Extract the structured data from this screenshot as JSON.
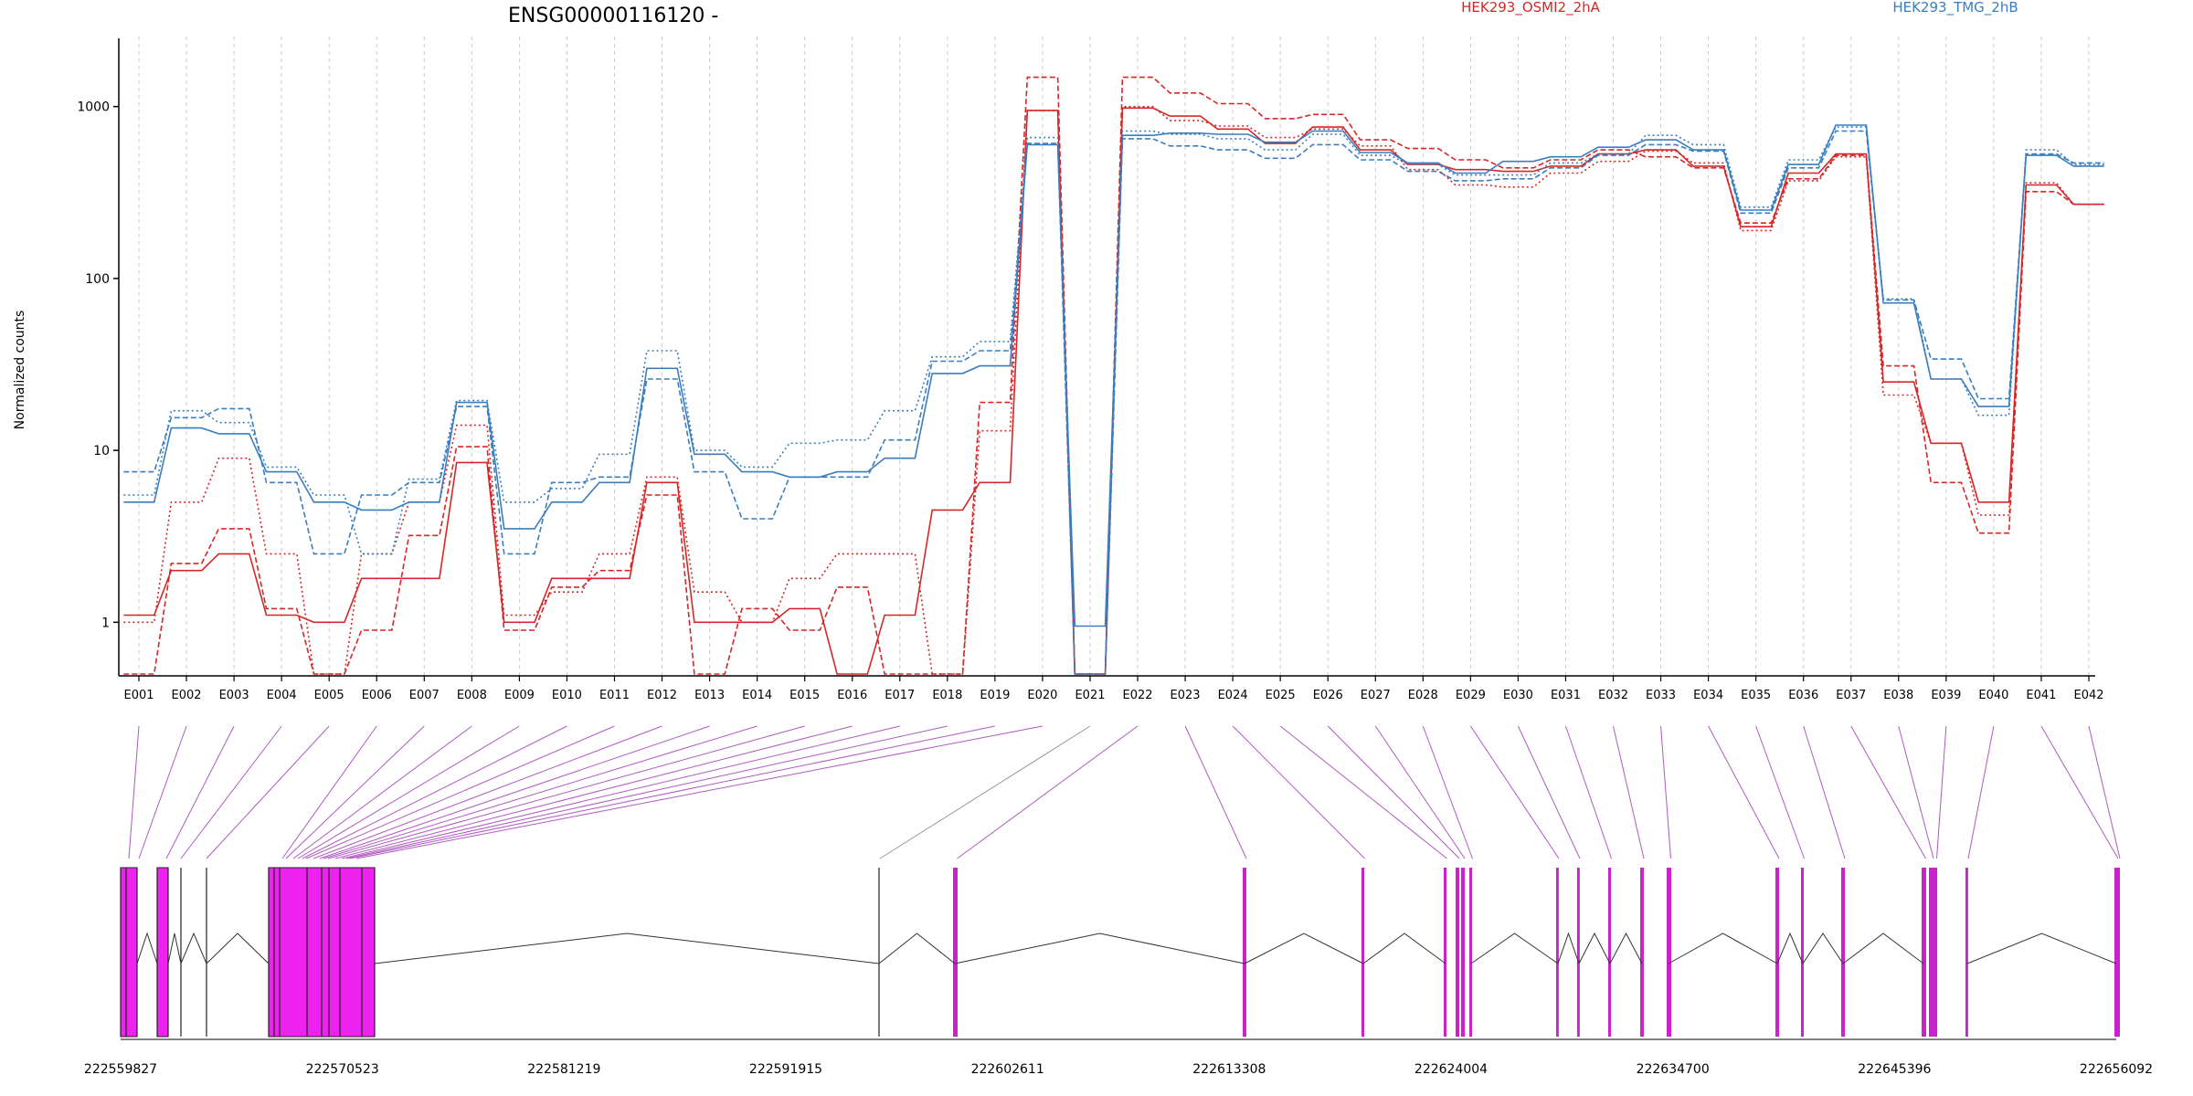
{
  "chart_data": {
    "type": "line",
    "title": "ENSG00000116120 -",
    "ylabel": "Normalized counts",
    "xlabel": "",
    "yscale": "log",
    "ylim": [
      0.5,
      2000
    ],
    "yticks": [
      1,
      10,
      100,
      1000
    ],
    "ytick_labels": [
      "1",
      "10",
      "100",
      "1000"
    ],
    "grid": "vertical dashed lines per exon",
    "legend_position": "top",
    "categories": [
      "E001",
      "E002",
      "E003",
      "E004",
      "E005",
      "E006",
      "E007",
      "E008",
      "E009",
      "E010",
      "E011",
      "E012",
      "E013",
      "E014",
      "E015",
      "E016",
      "E017",
      "E018",
      "E019",
      "E020",
      "E021",
      "E022",
      "E023",
      "E024",
      "E025",
      "E026",
      "E027",
      "E028",
      "E029",
      "E030",
      "E031",
      "E032",
      "E033",
      "E034",
      "E035",
      "E036",
      "E037",
      "E038",
      "E039",
      "E040",
      "E041",
      "E042"
    ],
    "groups": [
      {
        "name": "HEK293_OSMI2_2hA",
        "color": "#d62728"
      },
      {
        "name": "HEK293_TMG_2hB",
        "color": "#3a7ebf"
      }
    ],
    "series": [
      {
        "group": 0,
        "dash": "solid",
        "values": [
          1.1,
          2.0,
          2.5,
          1.1,
          1.0,
          1.8,
          1.8,
          8.5,
          1.0,
          1.8,
          1.8,
          6.5,
          1.0,
          1.0,
          1.2,
          0.5,
          1.1,
          4.5,
          6.5,
          950,
          0.5,
          980,
          880,
          740,
          610,
          760,
          560,
          460,
          430,
          420,
          450,
          530,
          560,
          450,
          200,
          410,
          530,
          25,
          11,
          5.0,
          350,
          270
        ]
      },
      {
        "group": 0,
        "dash": "dashed",
        "values": [
          0.5,
          2.2,
          3.5,
          1.2,
          0.5,
          0.9,
          3.2,
          10.5,
          0.9,
          1.6,
          2.0,
          5.5,
          0.5,
          1.2,
          0.9,
          1.6,
          0.5,
          0.5,
          19,
          1480,
          0.5,
          1480,
          1200,
          1040,
          850,
          900,
          640,
          570,
          490,
          440,
          490,
          560,
          510,
          440,
          210,
          380,
          520,
          31,
          6.5,
          3.3,
          320,
          270
        ]
      },
      {
        "group": 0,
        "dash": "dotted",
        "values": [
          1.0,
          5.0,
          9.0,
          2.5,
          0.5,
          2.5,
          5.0,
          14.0,
          1.1,
          1.5,
          2.5,
          7.0,
          1.5,
          1.0,
          1.8,
          2.5,
          2.5,
          0.5,
          13,
          950,
          0.5,
          1000,
          830,
          770,
          660,
          740,
          590,
          430,
          350,
          340,
          410,
          480,
          550,
          470,
          190,
          370,
          510,
          21,
          11,
          4.2,
          360,
          270
        ]
      },
      {
        "group": 1,
        "dash": "solid",
        "values": [
          5.0,
          13.5,
          12.5,
          7.5,
          5.0,
          4.5,
          5.0,
          19.0,
          3.5,
          5.0,
          6.5,
          30,
          9.5,
          7.5,
          7.0,
          7.5,
          9.0,
          28,
          31,
          600,
          0.95,
          680,
          700,
          690,
          620,
          720,
          540,
          470,
          410,
          480,
          510,
          580,
          640,
          560,
          250,
          460,
          780,
          72,
          26,
          18,
          520,
          450
        ]
      },
      {
        "group": 1,
        "dash": "dashed",
        "values": [
          7.5,
          15.5,
          17.5,
          6.5,
          2.5,
          5.5,
          6.5,
          18.0,
          2.5,
          6.5,
          7.0,
          26,
          7.5,
          4.0,
          7.0,
          7.0,
          11.5,
          33,
          38,
          610,
          0.5,
          650,
          590,
          560,
          500,
          600,
          490,
          420,
          370,
          380,
          440,
          520,
          600,
          550,
          240,
          440,
          720,
          75,
          34,
          20,
          530,
          470
        ]
      },
      {
        "group": 1,
        "dash": "dotted",
        "values": [
          5.5,
          17.0,
          14.5,
          8.0,
          5.5,
          2.5,
          6.8,
          19.5,
          5.0,
          6.0,
          9.5,
          38,
          10.0,
          8.0,
          11.0,
          11.5,
          17.0,
          35,
          43,
          660,
          0.5,
          720,
          690,
          650,
          560,
          690,
          520,
          460,
          400,
          400,
          470,
          530,
          680,
          600,
          260,
          490,
          760,
          76,
          26,
          16,
          560,
          460
        ]
      }
    ],
    "exon_axis_coordinates": [
      222559827,
      222570523,
      222581219,
      222591915,
      222602611,
      222613308,
      222624004,
      222634700,
      222645396,
      222656092
    ]
  }
}
